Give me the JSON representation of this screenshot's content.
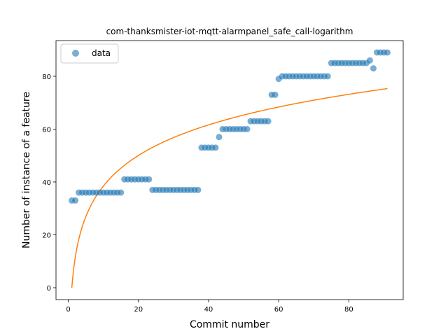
{
  "chart_data": {
    "type": "scatter",
    "title": "com-thanksmister-iot-mqtt-alarmpanel_safe_call-logarithm",
    "xlabel": "Commit number",
    "ylabel": "Number of instance of a feature",
    "xlim": [
      -3.5,
      95.5
    ],
    "ylim": [
      -4.5,
      93.5
    ],
    "xticks": [
      0,
      20,
      40,
      60,
      80
    ],
    "yticks": [
      0,
      20,
      40,
      60,
      80
    ],
    "legend": {
      "position": "top-left",
      "entries": [
        "data"
      ]
    },
    "colors": {
      "data": "#1f77b4",
      "fit": "#ff7f0e"
    },
    "series": [
      {
        "name": "data",
        "kind": "scatter",
        "x": [
          1,
          2,
          3,
          4,
          5,
          6,
          7,
          8,
          9,
          10,
          11,
          12,
          13,
          14,
          15,
          16,
          17,
          18,
          19,
          20,
          21,
          22,
          23,
          24,
          25,
          26,
          27,
          28,
          29,
          30,
          31,
          32,
          33,
          34,
          35,
          36,
          37,
          38,
          39,
          40,
          41,
          42,
          43,
          44,
          45,
          46,
          47,
          48,
          49,
          50,
          51,
          52,
          53,
          54,
          55,
          56,
          57,
          58,
          59,
          60,
          61,
          62,
          63,
          64,
          65,
          66,
          67,
          68,
          69,
          70,
          71,
          72,
          73,
          74,
          75,
          76,
          77,
          78,
          79,
          80,
          81,
          82,
          83,
          84,
          85,
          86,
          87,
          88,
          89,
          90,
          91
        ],
        "y": [
          33,
          33,
          36,
          36,
          36,
          36,
          36,
          36,
          36,
          36,
          36,
          36,
          36,
          36,
          36,
          41,
          41,
          41,
          41,
          41,
          41,
          41,
          41,
          37,
          37,
          37,
          37,
          37,
          37,
          37,
          37,
          37,
          37,
          37,
          37,
          37,
          37,
          53,
          53,
          53,
          53,
          53,
          57,
          60,
          60,
          60,
          60,
          60,
          60,
          60,
          60,
          63,
          63,
          63,
          63,
          63,
          63,
          73,
          73,
          79,
          80,
          80,
          80,
          80,
          80,
          80,
          80,
          80,
          80,
          80,
          80,
          80,
          80,
          80,
          85,
          85,
          85,
          85,
          85,
          85,
          85,
          85,
          85,
          85,
          85,
          86,
          83,
          89,
          89,
          89,
          89
        ]
      },
      {
        "kind": "line",
        "a": 16.7,
        "b": 0,
        "x_start": 1,
        "x_end": 91
      }
    ]
  }
}
